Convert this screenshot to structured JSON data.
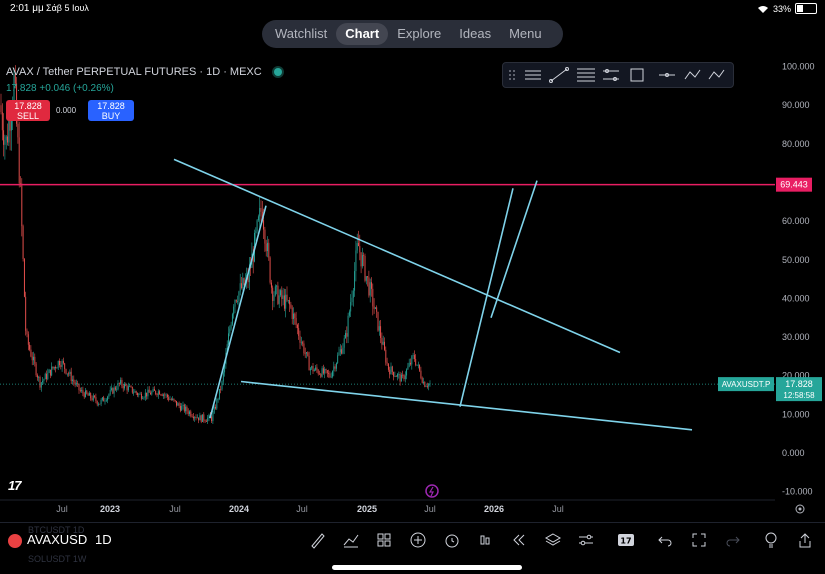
{
  "status_bar": {
    "time": "2:01 μμ",
    "date": "Σάβ 5 Ιουλ",
    "battery": "33%"
  },
  "nav": {
    "tabs": [
      "Watchlist",
      "Chart",
      "Explore",
      "Ideas",
      "Menu"
    ],
    "active": "Chart"
  },
  "symbol_header": {
    "title": "AVAX / Tether PERPETUAL FUTURES · 1D · MEXC",
    "change": "17.828 +0.046 (+0.26%)",
    "sell_price": "17.828",
    "sell_label": "SELL",
    "spread": "0.000",
    "buy_price": "17.828",
    "buy_label": "BUY"
  },
  "bottom_bar": {
    "symbol": "AVAXUSD",
    "interval": "1D",
    "ghost_above": "BTCUSDT   1D",
    "ghost_below": "SOLUSDT   1W"
  },
  "colors": {
    "up": "#26a69a",
    "down": "#ef5350",
    "trendline": "#7fd3ea",
    "hline": "#e91e63"
  },
  "chart_data": {
    "type": "candlestick",
    "title": "AVAX / Tether PERPETUAL FUTURES · 1D · MEXC",
    "x_ticks": [
      "Jul",
      "2023",
      "Jul",
      "2024",
      "Jul",
      "2025",
      "Jul",
      "2026",
      "Jul"
    ],
    "y_ticks": [
      100,
      90,
      80,
      70,
      60,
      50,
      40,
      30,
      20,
      10,
      0,
      -10
    ],
    "y_tick_labels": [
      "100.000",
      "90.000",
      "80.000",
      "70.000",
      "60.000",
      "50.000",
      "40.000",
      "30.000",
      "20.000",
      "10.000",
      "0.000",
      "-10.000"
    ],
    "ylim": [
      -12,
      104
    ],
    "price_path": [
      [
        0,
        90
      ],
      [
        6,
        80
      ],
      [
        14,
        96
      ],
      [
        20,
        70
      ],
      [
        26,
        30
      ],
      [
        40,
        18
      ],
      [
        60,
        24
      ],
      [
        80,
        16
      ],
      [
        100,
        13
      ],
      [
        120,
        18
      ],
      [
        140,
        15
      ],
      [
        160,
        16
      ],
      [
        180,
        12
      ],
      [
        200,
        9
      ],
      [
        212,
        9
      ],
      [
        222,
        18
      ],
      [
        234,
        40
      ],
      [
        248,
        45
      ],
      [
        262,
        64
      ],
      [
        272,
        42
      ],
      [
        290,
        38
      ],
      [
        310,
        22
      ],
      [
        330,
        20
      ],
      [
        346,
        30
      ],
      [
        358,
        54
      ],
      [
        372,
        40
      ],
      [
        388,
        22
      ],
      [
        402,
        19
      ],
      [
        414,
        25
      ],
      [
        424,
        18
      ],
      [
        431,
        17.8
      ]
    ],
    "horizontal_line": {
      "value": 69.443,
      "label": "69.443"
    },
    "current_price": {
      "symbol": "AVAXUSDT.P",
      "value": 17.828,
      "label": "17.828",
      "countdown": "12:58:58"
    },
    "trendlines": [
      {
        "from": [
          174,
          76.0
        ],
        "to": [
          620,
          26.0
        ]
      },
      {
        "from": [
          241,
          18.5
        ],
        "to": [
          692,
          6.0
        ]
      },
      {
        "from": [
          210,
          9.0
        ],
        "to": [
          266,
          64.0
        ]
      },
      {
        "from": [
          460,
          12.0
        ],
        "to": [
          513,
          68.5
        ]
      },
      {
        "from": [
          491,
          35.0
        ],
        "to": [
          537,
          70.5
        ]
      }
    ]
  }
}
